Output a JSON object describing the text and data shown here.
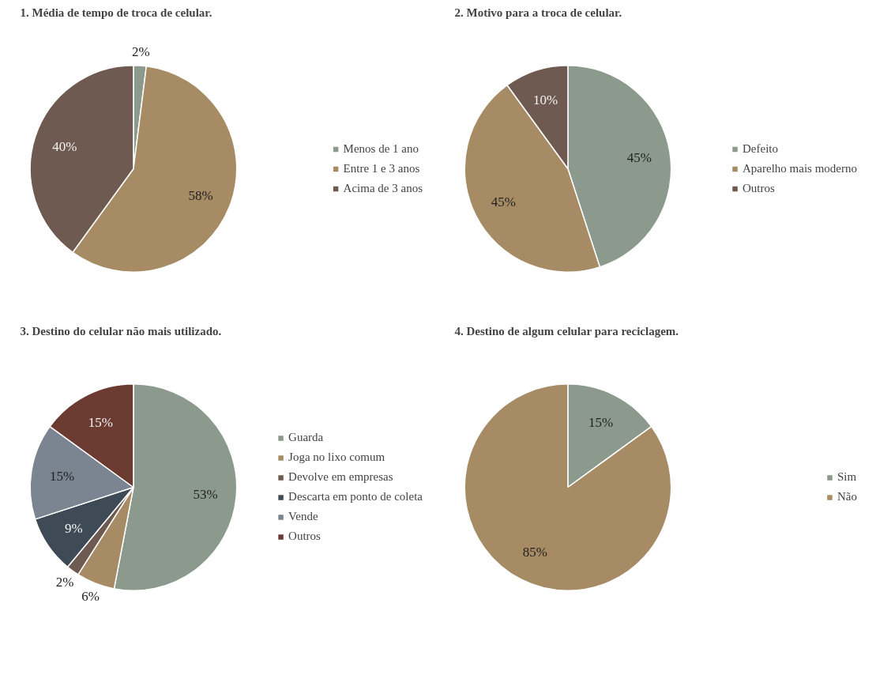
{
  "chart_data": [
    {
      "type": "pie",
      "title": "1. Média de tempo de troca de celular.",
      "categories": [
        "Menos de 1 ano",
        "Entre 1 e 3 anos",
        "Acima de 3 anos"
      ],
      "values": [
        2,
        58,
        40
      ],
      "value_labels": [
        "2%",
        "58%",
        "40%"
      ],
      "colors": [
        "#8c9a8e",
        "#a68b64",
        "#6e5a50"
      ],
      "legend": "right"
    },
    {
      "type": "pie",
      "title": "2. Motivo para a troca de celular.",
      "categories": [
        "Defeito",
        "Aparelho mais moderno",
        "Outros"
      ],
      "values": [
        45,
        45,
        10
      ],
      "value_labels": [
        "45%",
        "45%",
        "10%"
      ],
      "colors": [
        "#8c9a8e",
        "#a68b64",
        "#6e5a50"
      ],
      "legend": "right"
    },
    {
      "type": "pie",
      "title": "3. Destino do celular não mais utilizado.",
      "categories": [
        "Guarda",
        "Joga no lixo comum",
        "Devolve em empresas",
        "Descarta em ponto de coleta",
        "Vende",
        "Outros"
      ],
      "values": [
        53,
        6,
        2,
        9,
        15,
        15
      ],
      "value_labels": [
        "53%",
        "6%",
        "2%",
        "9%",
        "15%",
        "15%"
      ],
      "colors": [
        "#8c9a8e",
        "#a68b64",
        "#6e5a50",
        "#3e4a55",
        "#7a8591",
        "#6b3a30"
      ],
      "legend": "right"
    },
    {
      "type": "pie",
      "title": "4. Destino de algum celular para reciclagem.",
      "categories": [
        "Sim",
        "Não"
      ],
      "values": [
        15,
        85
      ],
      "value_labels": [
        "15%",
        "85%"
      ],
      "colors": [
        "#8c9a8e",
        "#a68b64"
      ],
      "legend": "right"
    }
  ]
}
